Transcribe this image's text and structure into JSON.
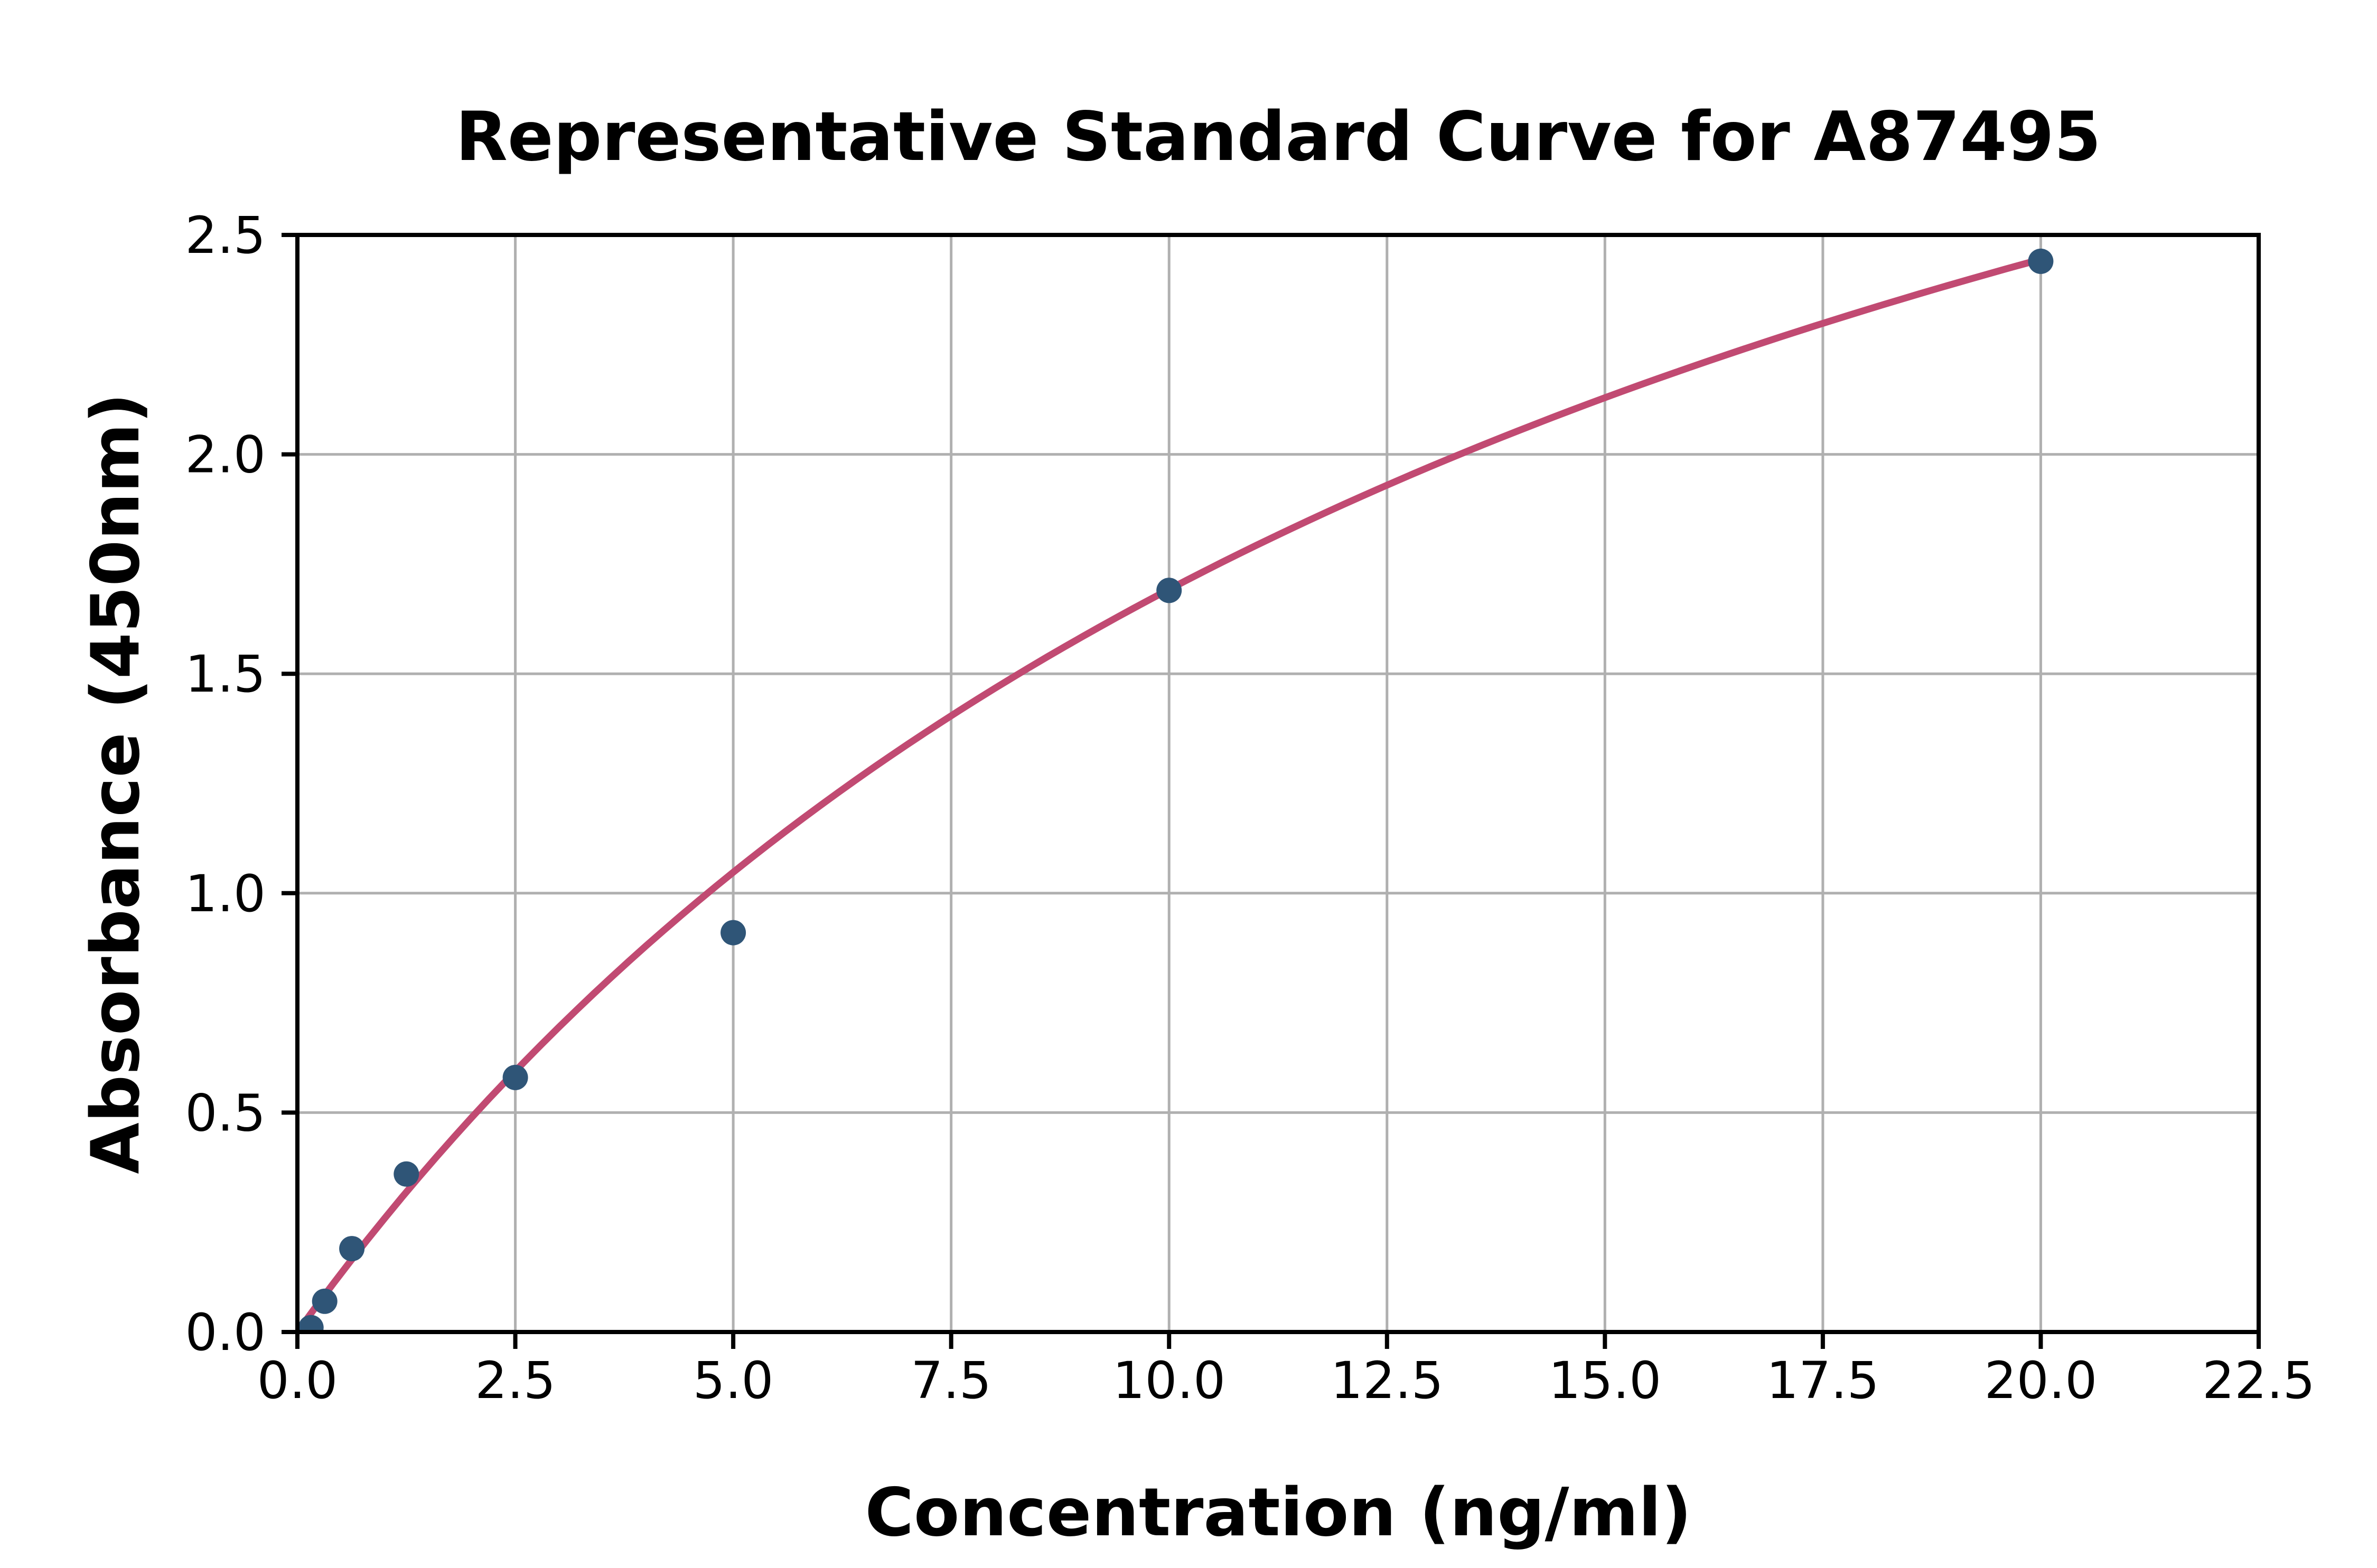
{
  "chart_data": {
    "type": "scatter",
    "title": "Representative Standard Curve for A87495",
    "xlabel": "Concentration (ng/ml)",
    "ylabel": "Absorbance (450nm)",
    "xlim": [
      0,
      22.5
    ],
    "ylim": [
      0,
      2.5
    ],
    "grid": true,
    "legend": "none",
    "x_tick_labels": [
      "0.0",
      "2.5",
      "5.0",
      "7.5",
      "10.0",
      "12.5",
      "15.0",
      "17.5",
      "20.0",
      "22.5"
    ],
    "y_tick_labels": [
      "0.0",
      "0.5",
      "1.0",
      "1.5",
      "2.0",
      "2.5"
    ],
    "series": [
      {
        "name": "standards",
        "style": "points",
        "x": [
          0.156,
          0.313,
          0.625,
          1.25,
          2.5,
          5.0,
          10.0,
          20.0
        ],
        "y": [
          0.01,
          0.07,
          0.19,
          0.36,
          0.58,
          0.91,
          1.69,
          2.44
        ]
      }
    ],
    "fit_curve": {
      "name": "fitted standard curve",
      "style": "line",
      "model": "saturation y = a*x/(c+x)",
      "a": 4.4,
      "c": 16,
      "x_start": 0,
      "x_end": 20,
      "y_end": 2.44
    },
    "colors": {
      "point": "#2F5577",
      "curve": "#C14A72",
      "grid": "#B0B0B0",
      "axis": "#000000",
      "text": "#000000",
      "background": "#FFFFFF"
    }
  }
}
